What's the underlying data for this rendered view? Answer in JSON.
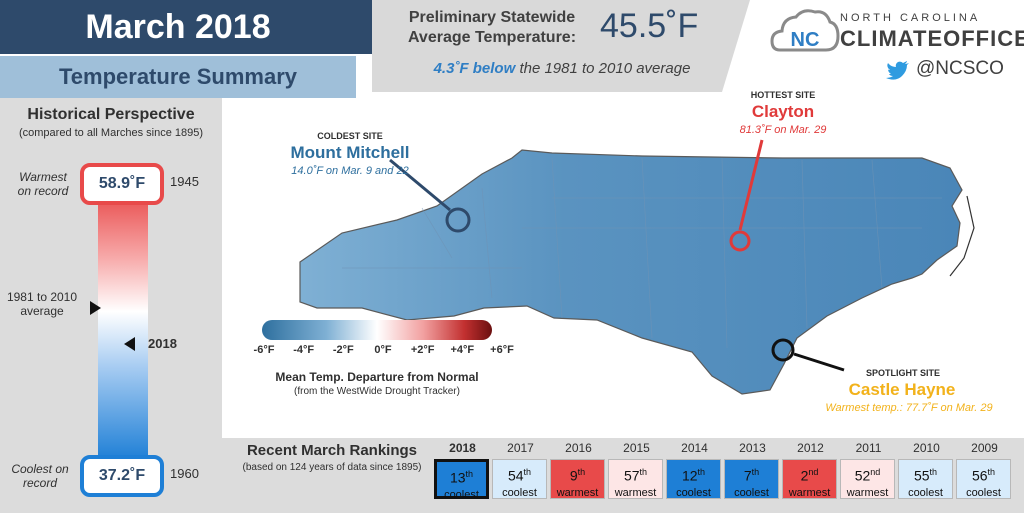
{
  "header": {
    "title": "March 2018",
    "subtitle": "Temperature Summary",
    "avg_label_line1": "Preliminary Statewide",
    "avg_label_line2": "Average Temperature:",
    "avg_value": "45.5˚F",
    "departure_bold": "4.3˚F below",
    "departure_rest": "the 1981 to 2010 average"
  },
  "logo": {
    "line1": "NORTH CAROLINA",
    "line2": "CLIMATEOFFICE",
    "mark": "NC",
    "twitter": "@NCSCO",
    "twitter_icon": "twitter-bird-icon"
  },
  "historical": {
    "title": "Historical Perspective",
    "subtitle": "(compared to all Marches since 1895)",
    "warmest_label_line1": "Warmest",
    "warmest_label_line2": "on record",
    "warmest_value": "58.9˚F",
    "warmest_year": "1945",
    "avg_label_line1": "1981 to 2010",
    "avg_label_line2": "average",
    "current_year": "2018",
    "current_value_fraction": 0.43,
    "coolest_label_line1": "Coolest on",
    "coolest_label_line2": "record",
    "coolest_value": "37.2˚F",
    "coolest_year": "1960"
  },
  "map": {
    "coldest_tag": "COLDEST SITE",
    "coldest_name": "Mount Mitchell",
    "coldest_detail": "14.0˚F on Mar. 9 and 22",
    "hottest_tag": "HOTTEST SITE",
    "hottest_name": "Clayton",
    "hottest_detail": "81.3˚F on Mar. 29",
    "spotlight_tag": "SPOTLIGHT SITE",
    "spotlight_name": "Castle Hayne",
    "spotlight_detail": "Warmest temp.: 77.7˚F on Mar. 29",
    "legend_ticks": [
      "-6°F",
      "-4°F",
      "-2°F",
      "0°F",
      "+2°F",
      "+4°F",
      "+6°F"
    ],
    "legend_title": "Mean Temp. Departure from Normal",
    "legend_source": "(from the WestWide Drought Tracker)",
    "colors": {
      "cold": "#2e6f9e",
      "hot": "#e03a3a",
      "spot": "#f2b21b"
    }
  },
  "rankings": {
    "title": "Recent March Rankings",
    "subtitle": "(based on 124 years of data since 1895)",
    "items": [
      {
        "year": "2018",
        "num": "13",
        "suffix": "th",
        "label": "coolest",
        "type": "cool-strong",
        "current": true
      },
      {
        "year": "2017",
        "num": "54",
        "suffix": "th",
        "label": "coolest",
        "type": "cool-light"
      },
      {
        "year": "2016",
        "num": "9",
        "suffix": "th",
        "label": "warmest",
        "type": "warm-strong"
      },
      {
        "year": "2015",
        "num": "57",
        "suffix": "th",
        "label": "warmest",
        "type": "warm-light"
      },
      {
        "year": "2014",
        "num": "12",
        "suffix": "th",
        "label": "coolest",
        "type": "cool-strong"
      },
      {
        "year": "2013",
        "num": "7",
        "suffix": "th",
        "label": "coolest",
        "type": "cool-strong"
      },
      {
        "year": "2012",
        "num": "2",
        "suffix": "nd",
        "label": "warmest",
        "type": "warm-strong"
      },
      {
        "year": "2011",
        "num": "52",
        "suffix": "nd",
        "label": "warmest",
        "type": "warm-light"
      },
      {
        "year": "2010",
        "num": "55",
        "suffix": "th",
        "label": "coolest",
        "type": "cool-light"
      },
      {
        "year": "2009",
        "num": "56",
        "suffix": "th",
        "label": "coolest",
        "type": "cool-light"
      }
    ]
  }
}
